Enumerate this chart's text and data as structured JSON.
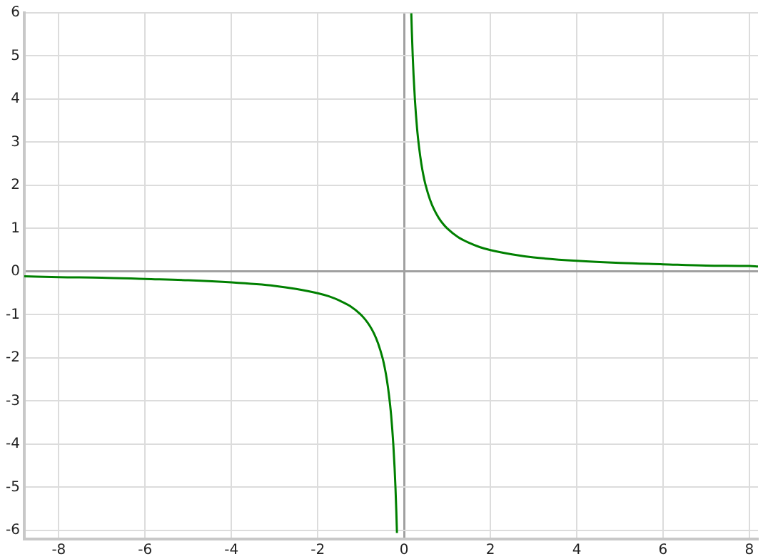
{
  "chart_data": {
    "type": "line",
    "xlim": [
      -8.8,
      8.2
    ],
    "ylim": [
      -6.2,
      6
    ],
    "xticks": [
      -8,
      -6,
      -4,
      -2,
      0,
      2,
      4,
      6,
      8
    ],
    "yticks": [
      -6,
      -5,
      -4,
      -3,
      -2,
      -1,
      0,
      1,
      2,
      3,
      4,
      5,
      6
    ],
    "grid": true,
    "legend": false,
    "marker": "none",
    "line_style": "solid",
    "series": [
      {
        "color": "#008000",
        "x": [
          -8.8,
          -8,
          -7,
          -6,
          -5,
          -4,
          -3,
          -2.5,
          -2,
          -1.75,
          -1.5,
          -1.25,
          -1,
          -0.9,
          -0.8,
          -0.7,
          -0.6,
          -0.5,
          -0.45,
          -0.4,
          -0.35,
          -0.3,
          -0.25,
          -0.22,
          -0.2,
          -0.18,
          -0.165,
          0,
          0.167,
          0.18,
          0.2,
          0.22,
          0.25,
          0.3,
          0.35,
          0.4,
          0.45,
          0.5,
          0.6,
          0.7,
          0.8,
          0.9,
          1,
          1.25,
          1.5,
          1.75,
          2,
          2.5,
          3,
          4,
          5,
          6,
          7,
          8,
          8.2
        ],
        "values": [
          -0.11,
          -0.13,
          -0.14,
          -0.17,
          -0.2,
          -0.25,
          -0.33,
          -0.4,
          -0.5,
          -0.57,
          -0.67,
          -0.8,
          -1,
          -1.11,
          -1.25,
          -1.43,
          -1.67,
          -2,
          -2.22,
          -2.5,
          -2.86,
          -3.33,
          -4,
          -4.55,
          -5,
          -5.56,
          -6.06,
          null,
          5.99,
          5.56,
          5,
          4.55,
          4,
          3.33,
          2.86,
          2.5,
          2.22,
          2,
          1.67,
          1.43,
          1.25,
          1.11,
          1,
          0.8,
          0.67,
          0.57,
          0.5,
          0.4,
          0.33,
          0.25,
          0.2,
          0.17,
          0.14,
          0.13,
          0.12
        ]
      }
    ]
  }
}
